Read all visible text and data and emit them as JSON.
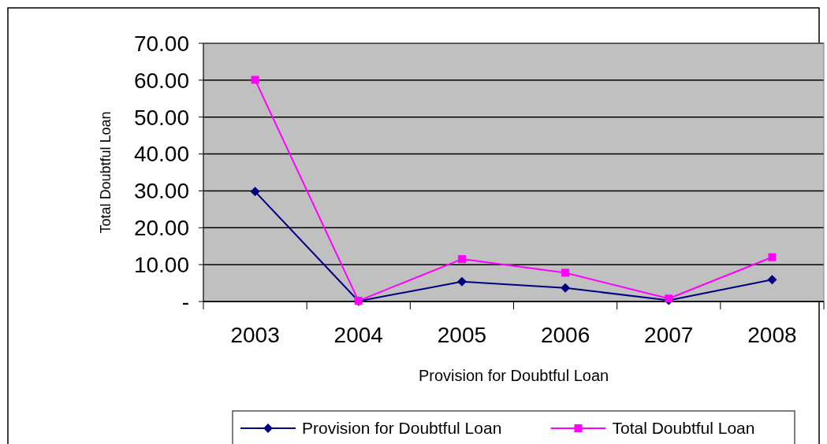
{
  "chart_data": {
    "type": "line",
    "xlabel": "Provision for Doubtful Loan",
    "ylabel": "Total Doubtful Loan",
    "categories": [
      "2003",
      "2004",
      "2005",
      "2006",
      "2007",
      "2008"
    ],
    "series": [
      {
        "name": "Provision for Doubtful Loan",
        "color": "#000080",
        "marker": "diamond",
        "values": [
          29.8,
          0.1,
          5.4,
          3.7,
          0.3,
          5.9
        ]
      },
      {
        "name": "Total Doubtful Loan",
        "color": "#ff00ff",
        "marker": "square",
        "values": [
          60.1,
          0.2,
          11.5,
          7.8,
          0.8,
          12
        ]
      }
    ],
    "ylim": [
      0,
      70
    ],
    "yticks": [
      {
        "value": 0,
        "label": "-"
      },
      {
        "value": 10,
        "label": "10.00"
      },
      {
        "value": 20,
        "label": "20.00"
      },
      {
        "value": 30,
        "label": "30.00"
      },
      {
        "value": 40,
        "label": "40.00"
      },
      {
        "value": 50,
        "label": "50.00"
      },
      {
        "value": 60,
        "label": "60.00"
      },
      {
        "value": 70,
        "label": "70.00"
      }
    ],
    "grid": "y",
    "legend": "bottom",
    "line_style": "solid"
  }
}
